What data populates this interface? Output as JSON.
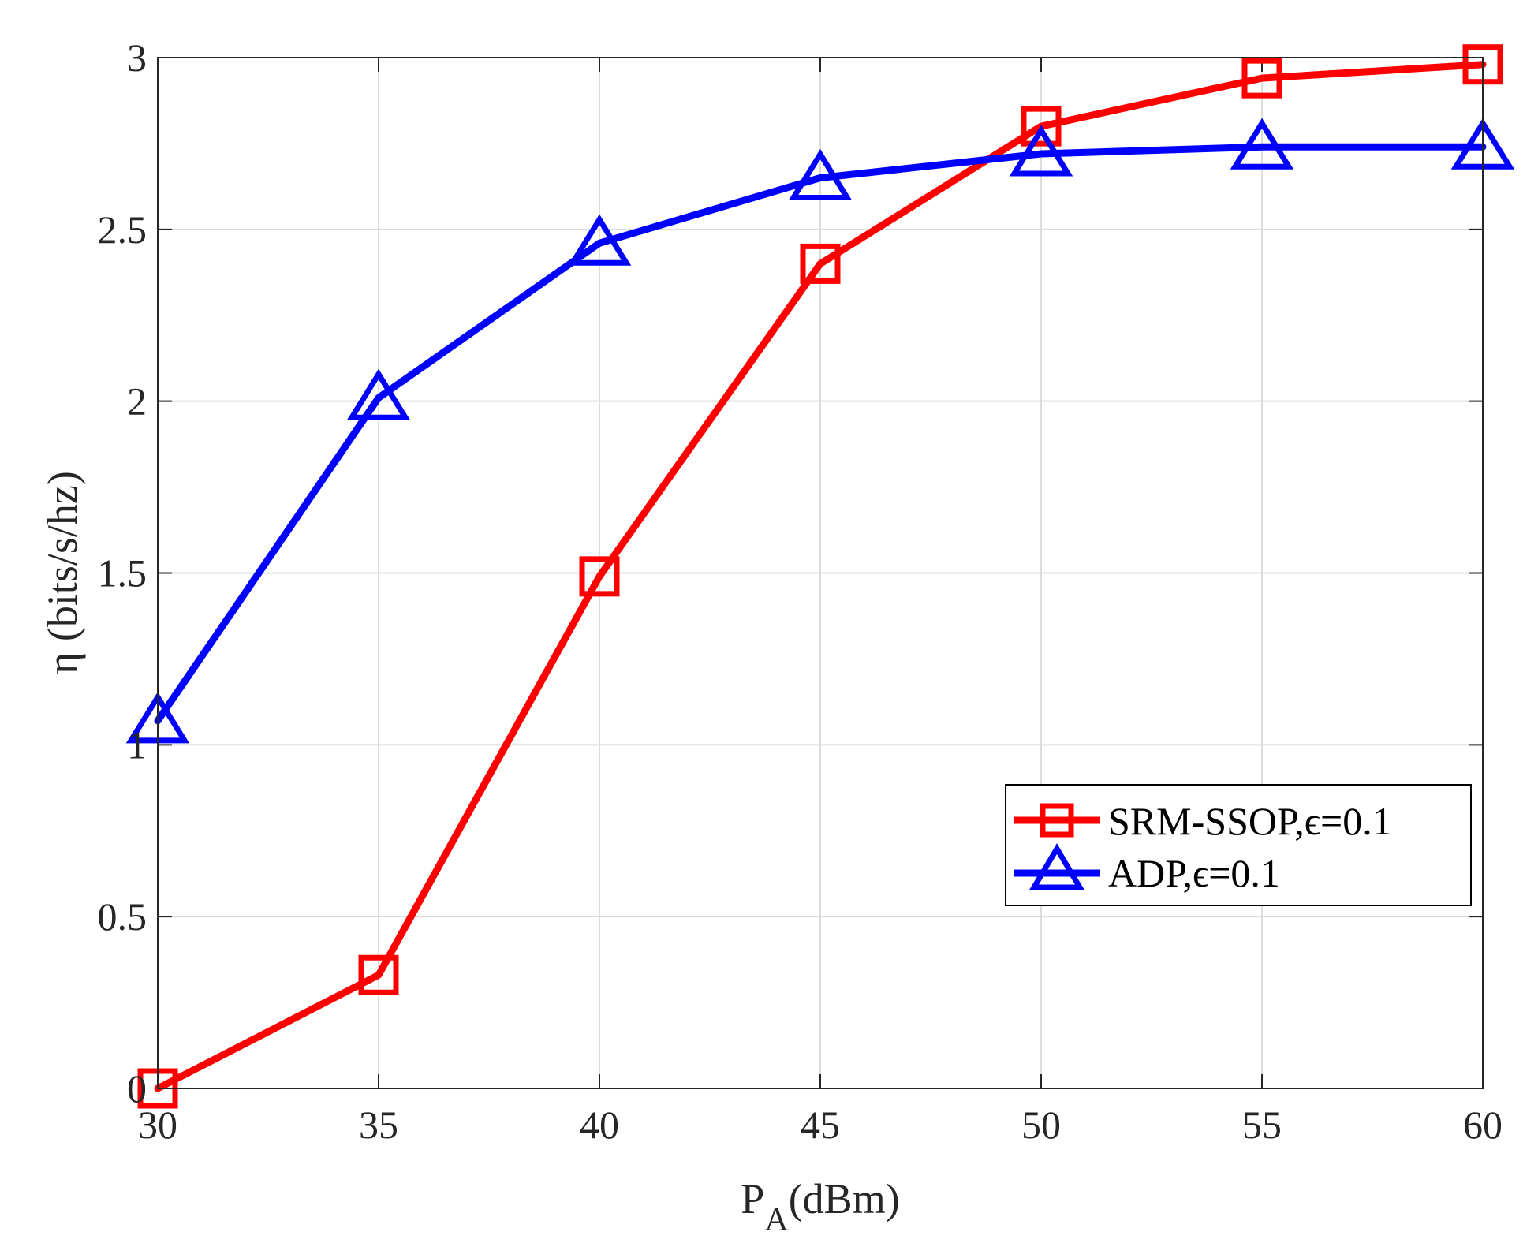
{
  "chart_data": {
    "type": "line",
    "xlabel": "P",
    "xlabel_sub": "A",
    "xlabel_unit": "(dBm)",
    "ylabel": "η (bits/s/hz)",
    "xlim": [
      30,
      60
    ],
    "ylim": [
      0,
      3
    ],
    "x_ticks": [
      30,
      35,
      40,
      45,
      50,
      55,
      60
    ],
    "y_ticks": [
      0,
      0.5,
      1,
      1.5,
      2,
      2.5,
      3
    ],
    "x_tick_labels": [
      "30",
      "35",
      "40",
      "45",
      "50",
      "55",
      "60"
    ],
    "y_tick_labels": [
      "0",
      "0.5",
      "1",
      "1.5",
      "2",
      "2.5",
      "3"
    ],
    "grid": true,
    "legend_position": "right-center",
    "x": [
      30,
      35,
      40,
      45,
      50,
      55,
      60
    ],
    "series": [
      {
        "name": "SRM-SSOP,ϵ=0.1",
        "color": "#ff0000",
        "marker": "square",
        "values": [
          0.0,
          0.33,
          1.49,
          2.4,
          2.8,
          2.94,
          2.98
        ]
      },
      {
        "name": "ADP,ϵ=0.1",
        "color": "#0000ff",
        "marker": "triangle",
        "values": [
          1.07,
          2.01,
          2.46,
          2.65,
          2.72,
          2.74,
          2.74
        ]
      }
    ]
  }
}
